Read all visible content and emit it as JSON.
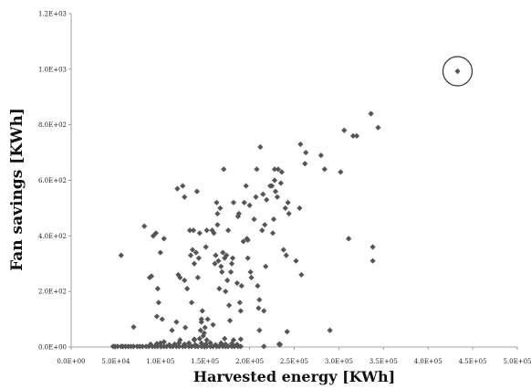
{
  "chart_data": {
    "type": "scatter",
    "title": "",
    "xlabel": "Harvested energy [KWh]",
    "ylabel": "Fan savings [KWh]",
    "xlim": [
      0,
      500000
    ],
    "ylim": [
      0,
      1200
    ],
    "x_ticks": [
      "0.0E+00",
      "5.0E+04",
      "1.0E+05",
      "1.5E+05",
      "2.0E+05",
      "2.5E+05",
      "3.0E+05",
      "3.5E+05",
      "4.0E+05",
      "4.5E+05",
      "5.0E+05"
    ],
    "y_ticks": [
      "0.0E+00",
      "2.0E+02",
      "4.0E+02",
      "6.0E+02",
      "8.0E+02",
      "1.0E+03",
      "1.2E+03"
    ],
    "grid": false,
    "marker": "diamond",
    "marker_color": "#555555",
    "highlight": {
      "shape": "circle",
      "x": 433000,
      "y": 993
    },
    "points": [
      [
        47000,
        2
      ],
      [
        49000,
        2
      ],
      [
        52000,
        2
      ],
      [
        56000,
        2
      ],
      [
        58000,
        2
      ],
      [
        61000,
        2
      ],
      [
        64000,
        2
      ],
      [
        67000,
        2
      ],
      [
        70000,
        2
      ],
      [
        74000,
        2
      ],
      [
        77000,
        2
      ],
      [
        80000,
        2
      ],
      [
        84000,
        2
      ],
      [
        87000,
        2
      ],
      [
        91000,
        2
      ],
      [
        94000,
        2
      ],
      [
        97000,
        2
      ],
      [
        101000,
        2
      ],
      [
        104000,
        2
      ],
      [
        107000,
        2
      ],
      [
        111000,
        2
      ],
      [
        114000,
        2
      ],
      [
        118000,
        2
      ],
      [
        121000,
        2
      ],
      [
        125000,
        2
      ],
      [
        128000,
        2
      ],
      [
        132000,
        2
      ],
      [
        135000,
        2
      ],
      [
        139000,
        2
      ],
      [
        142000,
        2
      ],
      [
        146000,
        2
      ],
      [
        149000,
        2
      ],
      [
        152000,
        2
      ],
      [
        156000,
        2
      ],
      [
        159000,
        2
      ],
      [
        163000,
        2
      ],
      [
        166000,
        2
      ],
      [
        170000,
        2
      ],
      [
        173000,
        2
      ],
      [
        176000,
        2
      ],
      [
        180000,
        2
      ],
      [
        183000,
        2
      ],
      [
        187000,
        2
      ],
      [
        190000,
        2
      ],
      [
        216000,
        2
      ],
      [
        89000,
        10
      ],
      [
        96000,
        12
      ],
      [
        100000,
        14
      ],
      [
        104000,
        18
      ],
      [
        110000,
        8
      ],
      [
        116000,
        10
      ],
      [
        121000,
        15
      ],
      [
        127000,
        10
      ],
      [
        132000,
        14
      ],
      [
        139000,
        8
      ],
      [
        146000,
        14
      ],
      [
        151000,
        10
      ],
      [
        156000,
        15
      ],
      [
        162000,
        8
      ],
      [
        168000,
        14
      ],
      [
        173000,
        10
      ],
      [
        180000,
        12
      ],
      [
        186000,
        9
      ],
      [
        122000,
        25
      ],
      [
        138000,
        28
      ],
      [
        144000,
        30
      ],
      [
        152000,
        25
      ],
      [
        172000,
        30
      ],
      [
        182000,
        25
      ],
      [
        190000,
        28
      ],
      [
        234000,
        8
      ],
      [
        234000,
        10
      ],
      [
        56000,
        330
      ],
      [
        70000,
        72
      ],
      [
        82000,
        435
      ],
      [
        88000,
        250
      ],
      [
        90000,
        255
      ],
      [
        92000,
        400
      ],
      [
        95000,
        410
      ],
      [
        96000,
        110
      ],
      [
        97000,
        210
      ],
      [
        98000,
        160
      ],
      [
        100000,
        340
      ],
      [
        102000,
        100
      ],
      [
        104000,
        390
      ],
      [
        113000,
        60
      ],
      [
        118000,
        90
      ],
      [
        119000,
        570
      ],
      [
        120000,
        260
      ],
      [
        122000,
        250
      ],
      [
        125000,
        580
      ],
      [
        127000,
        540
      ],
      [
        127000,
        240
      ],
      [
        128000,
        70
      ],
      [
        130000,
        210
      ],
      [
        133000,
        420
      ],
      [
        134000,
        330
      ],
      [
        135000,
        160
      ],
      [
        136000,
        350
      ],
      [
        137000,
        420
      ],
      [
        138000,
        300
      ],
      [
        138000,
        25
      ],
      [
        140000,
        340
      ],
      [
        141000,
        560
      ],
      [
        142000,
        250
      ],
      [
        143000,
        320
      ],
      [
        144000,
        410
      ],
      [
        145000,
        60
      ],
      [
        146000,
        90
      ],
      [
        146000,
        100
      ],
      [
        147000,
        130
      ],
      [
        148000,
        40
      ],
      [
        149000,
        50
      ],
      [
        150000,
        70
      ],
      [
        151000,
        360
      ],
      [
        152000,
        420
      ],
      [
        153000,
        100
      ],
      [
        158000,
        420
      ],
      [
        159000,
        80
      ],
      [
        160000,
        410
      ],
      [
        161000,
        300
      ],
      [
        162000,
        330
      ],
      [
        163000,
        520
      ],
      [
        164000,
        480
      ],
      [
        164000,
        440
      ],
      [
        165000,
        310
      ],
      [
        166000,
        210
      ],
      [
        167000,
        500
      ],
      [
        168000,
        290
      ],
      [
        169000,
        270
      ],
      [
        170000,
        340
      ],
      [
        171000,
        640
      ],
      [
        172000,
        320
      ],
      [
        173000,
        200
      ],
      [
        174000,
        330
      ],
      [
        175000,
        240
      ],
      [
        176000,
        420
      ],
      [
        177000,
        150
      ],
      [
        178000,
        95
      ],
      [
        179000,
        270
      ],
      [
        180000,
        300
      ],
      [
        181000,
        320
      ],
      [
        182000,
        520
      ],
      [
        186000,
        230
      ],
      [
        187000,
        470
      ],
      [
        188000,
        480
      ],
      [
        189000,
        160
      ],
      [
        190000,
        130
      ],
      [
        191000,
        220
      ],
      [
        193000,
        380
      ],
      [
        194000,
        520
      ],
      [
        196000,
        580
      ],
      [
        197000,
        390
      ],
      [
        198000,
        320
      ],
      [
        198000,
        385
      ],
      [
        200000,
        510
      ],
      [
        201000,
        270
      ],
      [
        202000,
        250
      ],
      [
        205000,
        460
      ],
      [
        207000,
        540
      ],
      [
        208000,
        640
      ],
      [
        209000,
        220
      ],
      [
        210000,
        140
      ],
      [
        211000,
        60
      ],
      [
        211000,
        170
      ],
      [
        212000,
        720
      ],
      [
        214000,
        420
      ],
      [
        215000,
        550
      ],
      [
        216000,
        130
      ],
      [
        217000,
        440
      ],
      [
        218000,
        290
      ],
      [
        219000,
        530
      ],
      [
        223000,
        580
      ],
      [
        225000,
        580
      ],
      [
        226000,
        410
      ],
      [
        227000,
        460
      ],
      [
        228000,
        600
      ],
      [
        228000,
        640
      ],
      [
        229000,
        560
      ],
      [
        231000,
        540
      ],
      [
        232000,
        640
      ],
      [
        233000,
        10
      ],
      [
        235000,
        590
      ],
      [
        236000,
        630
      ],
      [
        238000,
        350
      ],
      [
        240000,
        500
      ],
      [
        241000,
        330
      ],
      [
        242000,
        55
      ],
      [
        243000,
        520
      ],
      [
        244000,
        480
      ],
      [
        252000,
        310
      ],
      [
        256000,
        500
      ],
      [
        257000,
        730
      ],
      [
        258000,
        260
      ],
      [
        262000,
        660
      ],
      [
        263000,
        700
      ],
      [
        280000,
        690
      ],
      [
        284000,
        640
      ],
      [
        290000,
        60
      ],
      [
        302000,
        630
      ],
      [
        306000,
        780
      ],
      [
        311000,
        390
      ],
      [
        316000,
        760
      ],
      [
        320000,
        760
      ],
      [
        336000,
        840
      ],
      [
        338000,
        310
      ],
      [
        338000,
        360
      ],
      [
        344000,
        790
      ],
      [
        433000,
        993
      ]
    ]
  }
}
